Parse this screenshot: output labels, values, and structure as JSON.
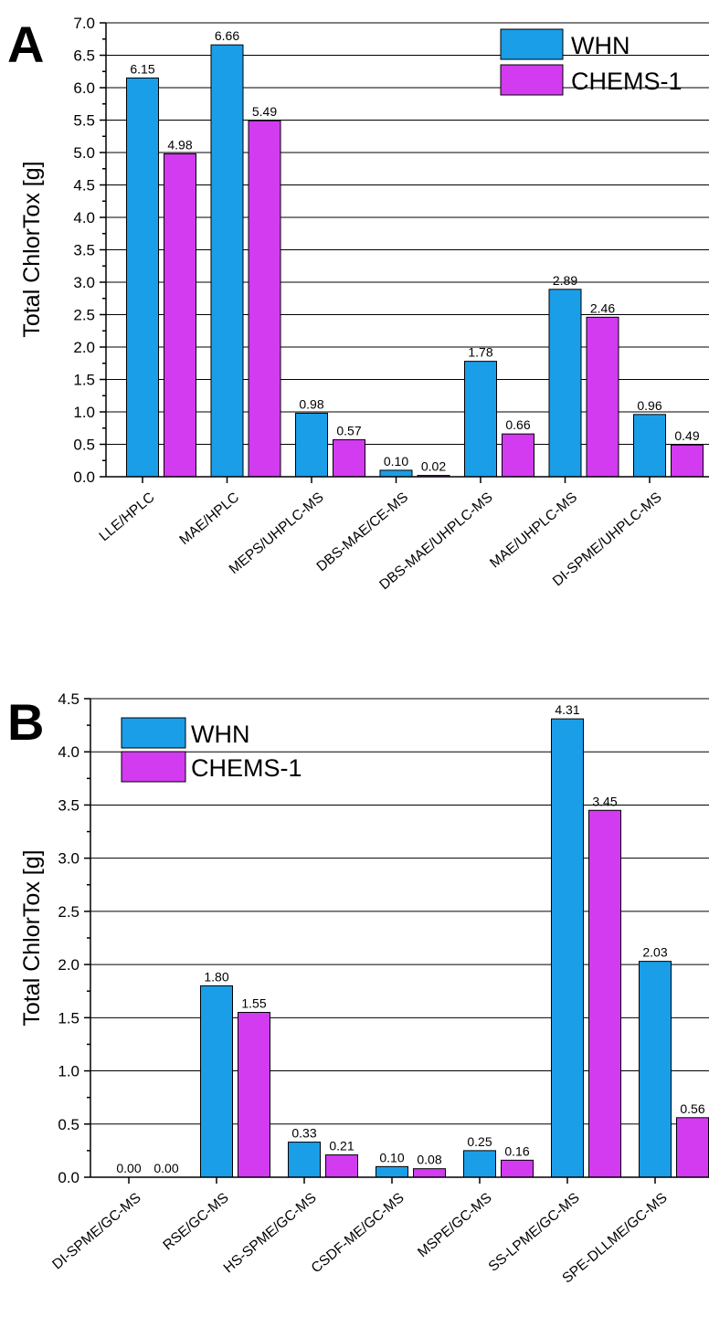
{
  "chart_data": [
    {
      "panel_label": "A",
      "type": "bar",
      "ylabel": "Total ChlorTox [g]",
      "xlabel": "",
      "ylim": [
        0,
        7.0
      ],
      "y_ticks": [
        "0.0",
        "0.5",
        "1.0",
        "1.5",
        "2.0",
        "2.5",
        "3.0",
        "3.5",
        "4.0",
        "4.5",
        "5.0",
        "5.5",
        "6.0",
        "6.5",
        "7.0"
      ],
      "grid": "horizontal",
      "legend_position": "top-right",
      "categories": [
        "LLE/HPLC",
        "MAE/HPLC",
        "MEPS/UHPLC-MS",
        "DBS-MAE/CE-MS",
        "DBS-MAE/UHPLC-MS",
        "MAE/UHPLC-MS",
        "DI-SPME/UHPLC-MS"
      ],
      "series": [
        {
          "name": "WHN",
          "color": "#1a9ee8",
          "values": [
            6.15,
            6.66,
            0.98,
            0.1,
            1.78,
            2.89,
            0.96
          ],
          "labels": [
            "6.15",
            "6.66",
            "0.98",
            "0.10",
            "1.78",
            "2.89",
            "0.96"
          ]
        },
        {
          "name": "CHEMS-1",
          "color": "#d23bf0",
          "values": [
            4.98,
            5.49,
            0.57,
            0.02,
            0.66,
            2.46,
            0.49
          ],
          "labels": [
            "4.98",
            "5.49",
            "0.57",
            "0.02",
            "0.66",
            "2.46",
            "0.49"
          ]
        }
      ]
    },
    {
      "panel_label": "B",
      "type": "bar",
      "ylabel": "Total ChlorTox [g]",
      "xlabel": "",
      "ylim": [
        0,
        4.5
      ],
      "y_ticks": [
        "0.0",
        "0.5",
        "1.0",
        "1.5",
        "2.0",
        "2.5",
        "3.0",
        "3.5",
        "4.0",
        "4.5"
      ],
      "grid": "horizontal",
      "legend_position": "top-left",
      "categories": [
        "DI-SPME/GC-MS",
        "RSE/GC-MS",
        "HS-SPME/GC-MS",
        "CSDF-ME/GC-MS",
        "MSPE/GC-MS",
        "SS-LPME/GC-MS",
        "SPE-DLLME/GC-MS"
      ],
      "series": [
        {
          "name": "WHN",
          "color": "#1a9ee8",
          "values": [
            0.0,
            1.8,
            0.33,
            0.1,
            0.25,
            4.31,
            2.03
          ],
          "labels": [
            "0.00",
            "1.80",
            "0.33",
            "0.10",
            "0.25",
            "4.31",
            "2.03"
          ]
        },
        {
          "name": "CHEMS-1",
          "color": "#d23bf0",
          "values": [
            0.0,
            1.55,
            0.21,
            0.08,
            0.16,
            3.45,
            0.56
          ],
          "labels": [
            "0.00",
            "1.55",
            "0.21",
            "0.08",
            "0.16",
            "3.45",
            "0.56"
          ]
        }
      ]
    }
  ]
}
